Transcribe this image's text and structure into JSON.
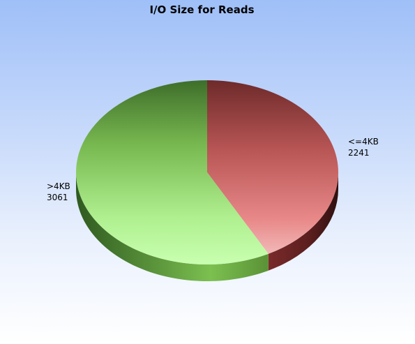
{
  "chart_data": {
    "type": "pie",
    "title": "I/O Size for Reads",
    "slices": [
      {
        "label": "<=4KB",
        "value": 2241,
        "color": "#b04848"
      },
      {
        "label": ">4KB",
        "value": 3061,
        "color": "#6cb04a"
      }
    ],
    "three_d": true,
    "legend": "none"
  }
}
